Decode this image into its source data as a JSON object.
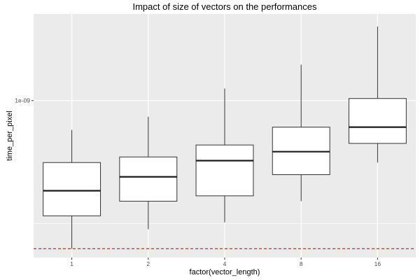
{
  "chart_data": {
    "type": "boxplot",
    "title": "Impact of size of vectors on the performances",
    "xlabel": "factor(vector_length)",
    "ylabel": "time_per_pixel",
    "y_scale": "log10",
    "y_ticks": [
      {
        "value": 1e-09,
        "label": "1e-09"
      }
    ],
    "ylim": [
      2.3e-10,
      2.25e-09
    ],
    "categories": [
      "1",
      "2",
      "4",
      "8",
      "16"
    ],
    "boxes": [
      {
        "category": "1",
        "whisker_low": 2.5e-10,
        "q1": 3.4e-10,
        "median": 4.3e-10,
        "q3": 5.6e-10,
        "whisker_high": 7.6e-10
      },
      {
        "category": "2",
        "whisker_low": 3e-10,
        "q1": 3.9e-10,
        "median": 4.9e-10,
        "q3": 5.9e-10,
        "whisker_high": 8.6e-10
      },
      {
        "category": "4",
        "whisker_low": 3.2e-10,
        "q1": 4.1e-10,
        "median": 5.7e-10,
        "q3": 6.6e-10,
        "whisker_high": 1.12e-09
      },
      {
        "category": "8",
        "whisker_low": 3.9e-10,
        "q1": 5e-10,
        "median": 6.2e-10,
        "q3": 7.8e-10,
        "whisker_high": 1.4e-09
      },
      {
        "category": "16",
        "whisker_low": 5.6e-10,
        "q1": 6.7e-10,
        "median": 7.8e-10,
        "q3": 1.02e-09,
        "whisker_high": 2e-09
      }
    ],
    "reference_line": {
      "value": 2.5e-10,
      "style": "dashed",
      "color": "#ff0000"
    },
    "grid": true,
    "legend": "none",
    "colors": {
      "panel": "#ebebeb",
      "grid": "#ffffff",
      "box_fill": "#ffffff",
      "box_stroke": "#333333",
      "median": "#1a1a1a"
    }
  }
}
